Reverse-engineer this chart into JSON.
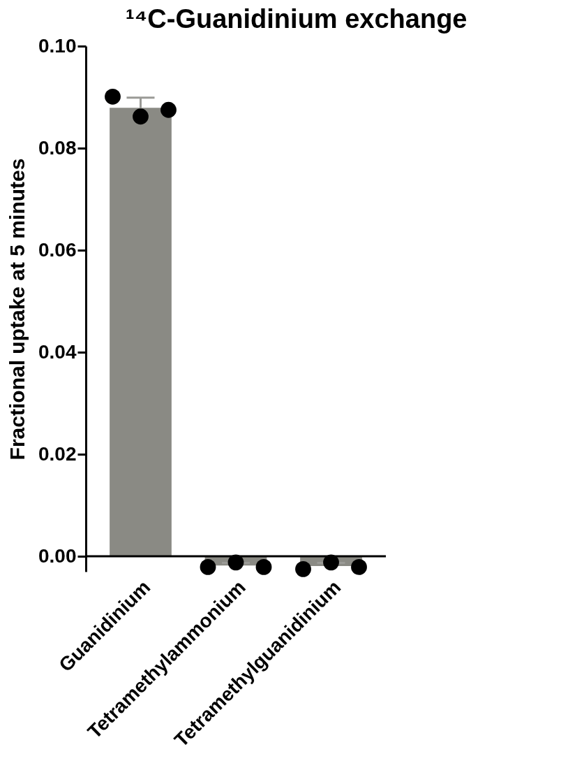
{
  "chart_data": {
    "type": "bar",
    "title": "¹⁴C-Guanidinium exchange",
    "ylabel": "Fractional uptake at 5 minutes",
    "categories": [
      "Guanidinium",
      "Tetramethylammonium",
      "Tetramethylguanidinium"
    ],
    "ylim": [
      -0.003,
      0.1
    ],
    "yticks": [
      {
        "value": 0,
        "label": "0.00"
      },
      {
        "value": 0.02,
        "label": "0.02"
      },
      {
        "value": 0.04,
        "label": "0.04"
      },
      {
        "value": 0.06,
        "label": "0.06"
      },
      {
        "value": 0.08,
        "label": "0.08"
      },
      {
        "value": 0.1,
        "label": "0.10"
      }
    ],
    "marker": "circle",
    "series": [
      {
        "color": "#8a8a84",
        "values": [
          0.0879,
          -0.0018,
          -0.0019
        ],
        "errors": [
          0.002,
          0.0005,
          0.0006
        ]
      },
      {
        "type": "scatter",
        "color": "#000000",
        "x": [
          "Guanidinium",
          "Guanidinium",
          "Guanidinium",
          "Tetramethylammonium",
          "Tetramethylammonium",
          "Tetramethylammonium",
          "Tetramethylguanidinium",
          "Tetramethylguanidinium",
          "Tetramethylguanidinium"
        ],
        "values": [
          0.0901,
          0.0862,
          0.0875,
          -0.0021,
          -0.0012,
          -0.0021,
          -0.0025,
          -0.0012,
          -0.0021
        ]
      }
    ]
  }
}
